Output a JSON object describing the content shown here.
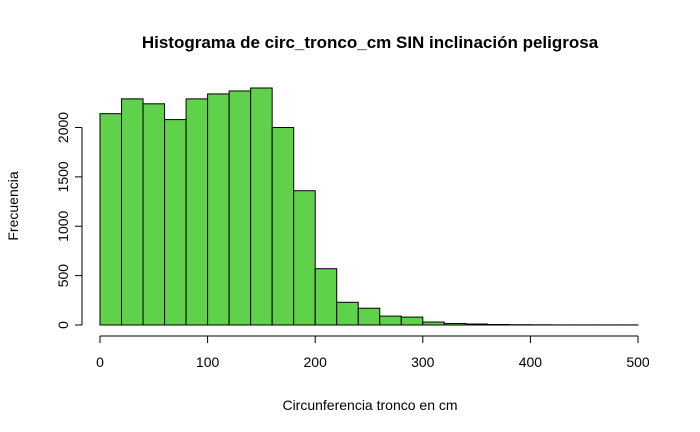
{
  "chart_data": {
    "type": "bar",
    "title": "Histograma de circ_tronco_cm SIN inclinación peligrosa",
    "xlabel": "Circunferencia tronco en cm",
    "ylabel": "Frecuencia",
    "bar_color": "#5fd14b",
    "bin_width": 20,
    "bin_starts": [
      0,
      20,
      40,
      60,
      80,
      100,
      120,
      140,
      160,
      180,
      200,
      220,
      240,
      260,
      280,
      300,
      320,
      340,
      360,
      380,
      400,
      420,
      440,
      460,
      480
    ],
    "values": [
      2140,
      2290,
      2240,
      2080,
      2290,
      2340,
      2370,
      2400,
      2000,
      1360,
      570,
      230,
      170,
      90,
      80,
      30,
      15,
      10,
      5,
      3,
      2,
      1,
      1,
      1,
      1
    ],
    "xlim": [
      0,
      500
    ],
    "ylim": [
      0,
      2400
    ],
    "x_ticks": [
      0,
      100,
      200,
      300,
      400,
      500
    ],
    "y_ticks": [
      0,
      500,
      1000,
      1500,
      2000
    ],
    "grid": false
  }
}
